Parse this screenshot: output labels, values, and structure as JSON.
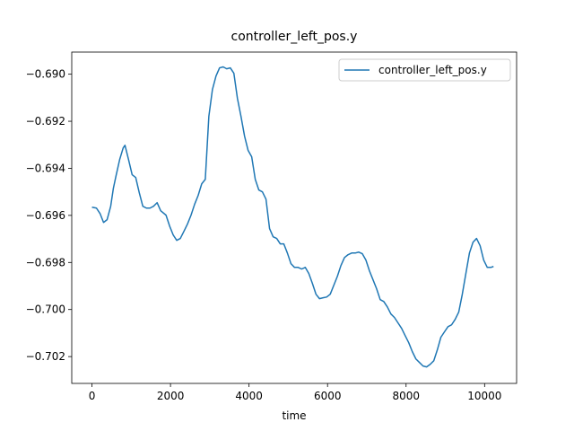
{
  "chart_data": {
    "type": "line",
    "title": "controller_left_pos.y",
    "x_label": "time",
    "x": [
      0,
      114,
      205,
      295,
      386,
      477,
      545,
      614,
      705,
      795,
      841,
      932,
      1023,
      1114,
      1205,
      1295,
      1386,
      1477,
      1568,
      1659,
      1750,
      1886,
      1977,
      2068,
      2159,
      2250,
      2341,
      2432,
      2523,
      2614,
      2705,
      2795,
      2886,
      2977,
      3068,
      3159,
      3250,
      3341,
      3432,
      3523,
      3614,
      3705,
      3795,
      3886,
      3977,
      4068,
      4159,
      4250,
      4341,
      4432,
      4523,
      4614,
      4705,
      4795,
      4886,
      4977,
      5068,
      5159,
      5250,
      5341,
      5432,
      5523,
      5614,
      5705,
      5795,
      5886,
      5977,
      6068,
      6159,
      6250,
      6341,
      6432,
      6523,
      6614,
      6705,
      6795,
      6886,
      6977,
      7068,
      7159,
      7250,
      7341,
      7432,
      7523,
      7614,
      7705,
      7795,
      7886,
      7977,
      8068,
      8159,
      8250,
      8341,
      8432,
      8523,
      8614,
      8705,
      8795,
      8886,
      8977,
      9068,
      9159,
      9250,
      9341,
      9432,
      9523,
      9614,
      9705,
      9795,
      9886,
      9977,
      10068,
      10159,
      10227
    ],
    "series": [
      {
        "name": "controller_left_pos.y",
        "color": "#1f77b4",
        "values": [
          -0.69565,
          -0.69569,
          -0.69592,
          -0.6963,
          -0.69618,
          -0.69561,
          -0.69485,
          -0.69431,
          -0.69363,
          -0.69313,
          -0.69302,
          -0.69363,
          -0.69427,
          -0.69439,
          -0.69504,
          -0.69561,
          -0.69569,
          -0.69569,
          -0.69561,
          -0.69546,
          -0.6958,
          -0.69599,
          -0.69645,
          -0.69683,
          -0.69706,
          -0.69698,
          -0.69668,
          -0.69637,
          -0.69599,
          -0.69553,
          -0.69515,
          -0.69466,
          -0.69447,
          -0.69179,
          -0.69065,
          -0.69008,
          -0.68973,
          -0.68969,
          -0.68977,
          -0.68973,
          -0.68996,
          -0.69103,
          -0.69179,
          -0.69263,
          -0.69324,
          -0.69351,
          -0.69447,
          -0.69492,
          -0.695,
          -0.69531,
          -0.69656,
          -0.69691,
          -0.69698,
          -0.69721,
          -0.69721,
          -0.6976,
          -0.69805,
          -0.69821,
          -0.69821,
          -0.69828,
          -0.69821,
          -0.69847,
          -0.69889,
          -0.69935,
          -0.69954,
          -0.6995,
          -0.69947,
          -0.69935,
          -0.69897,
          -0.69859,
          -0.69813,
          -0.69779,
          -0.69767,
          -0.6976,
          -0.6976,
          -0.69756,
          -0.69763,
          -0.6979,
          -0.69836,
          -0.69874,
          -0.69912,
          -0.69958,
          -0.69966,
          -0.69989,
          -0.70019,
          -0.70034,
          -0.70057,
          -0.7008,
          -0.70111,
          -0.70141,
          -0.70179,
          -0.7021,
          -0.70225,
          -0.7024,
          -0.70244,
          -0.70233,
          -0.70218,
          -0.70172,
          -0.70118,
          -0.70095,
          -0.70073,
          -0.70065,
          -0.70042,
          -0.70011,
          -0.69935,
          -0.69847,
          -0.6976,
          -0.69714,
          -0.69698,
          -0.69729,
          -0.6979,
          -0.69821,
          -0.69821,
          -0.69817
        ]
      }
    ],
    "xlim": [
      -515,
      10815
    ],
    "ylim": [
      -0.70314,
      -0.68906
    ],
    "xticks": [
      0,
      2000,
      4000,
      6000,
      8000,
      10000
    ],
    "yticks": [
      {
        "value": -0.702,
        "label": "−0.702"
      },
      {
        "value": -0.7,
        "label": "−0.700"
      },
      {
        "value": -0.698,
        "label": "−0.698"
      },
      {
        "value": -0.696,
        "label": "−0.696"
      },
      {
        "value": -0.694,
        "label": "−0.694"
      },
      {
        "value": -0.692,
        "label": "−0.692"
      },
      {
        "value": -0.69,
        "label": "−0.690"
      }
    ],
    "grid": false,
    "legend": "upper right"
  }
}
